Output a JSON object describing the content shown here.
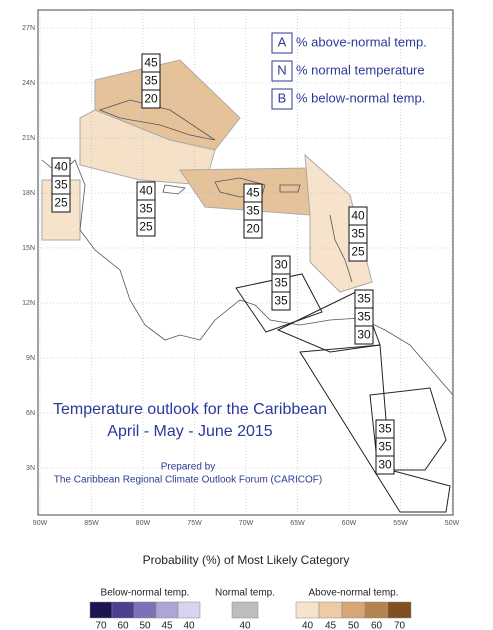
{
  "map": {
    "key": [
      {
        "letter": "A",
        "text": "% above-normal temp."
      },
      {
        "letter": "N",
        "text": "% normal temperature"
      },
      {
        "letter": "B",
        "text": "% below-normal temp."
      }
    ],
    "lat_labels": [
      "27N",
      "24N",
      "21N",
      "18N",
      "15N",
      "12N",
      "9N",
      "6N",
      "3N"
    ],
    "lon_labels": [
      "90W",
      "85W",
      "80W",
      "75W",
      "70W",
      "65W",
      "60W",
      "55W",
      "50W"
    ],
    "regions": [
      {
        "above": 45,
        "normal": 35,
        "below": 20
      },
      {
        "above": 40,
        "normal": 35,
        "below": 25
      },
      {
        "above": 40,
        "normal": 35,
        "below": 25
      },
      {
        "above": 45,
        "normal": 35,
        "below": 20
      },
      {
        "above": 40,
        "normal": 35,
        "below": 25
      },
      {
        "above": 30,
        "normal": 35,
        "below": 35
      },
      {
        "above": 35,
        "normal": 35,
        "below": 30
      },
      {
        "above": 35,
        "normal": 35,
        "below": 30
      }
    ],
    "title": [
      "Temperature outlook for the Caribbean",
      "April - May - June 2015"
    ],
    "prepared_by": [
      "Prepared by",
      "The Caribbean Regional Climate Outlook Forum (CARICOF)"
    ]
  },
  "legend": {
    "title": "Probability (%) of Most Likely Category",
    "groups": [
      {
        "name": "Below-normal temp.",
        "colors": [
          "#1c1650",
          "#4b3f8f",
          "#7d72b8",
          "#ada5d6",
          "#d8d3ee"
        ],
        "labels": [
          70,
          60,
          50,
          45,
          40
        ]
      },
      {
        "name": "Normal temp.",
        "colors": [
          "#bdbdbd"
        ],
        "labels": [
          40
        ]
      },
      {
        "name": "Above-normal temp.",
        "colors": [
          "#f7e3cc",
          "#eccba5",
          "#d6a676",
          "#b5834f",
          "#7f4f1f"
        ],
        "labels": [
          40,
          45,
          50,
          60,
          70
        ]
      }
    ]
  }
}
